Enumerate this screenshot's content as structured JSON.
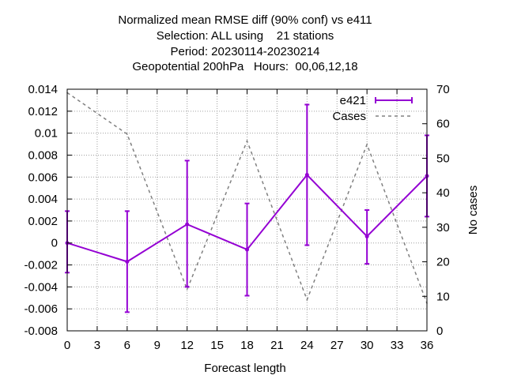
{
  "chart_data": {
    "type": "line",
    "title_lines": [
      "Normalized mean RMSE diff (90% conf) vs e411",
      "Selection: ALL using    21 stations",
      "Period: 20230114-20230214",
      "Geopotential 200hPa   Hours:  00,06,12,18"
    ],
    "xlabel": "Forecast length",
    "ylabel": "",
    "y2label": "No cases",
    "xlim": [
      0,
      36
    ],
    "ylim": [
      -0.008,
      0.014
    ],
    "y2lim": [
      0,
      70
    ],
    "x_ticks": [
      "0",
      "3",
      "6",
      "9",
      "12",
      "15",
      "18",
      "21",
      "24",
      "27",
      "30",
      "33",
      "36"
    ],
    "y_ticks": [
      "0.014",
      "0.012",
      "0.01",
      "0.008",
      "0.006",
      "0.004",
      "0.002",
      "0",
      "-0.002",
      "-0.004",
      "-0.006",
      "-0.008"
    ],
    "y2_ticks": [
      "70",
      "60",
      "50",
      "40",
      "30",
      "20",
      "10",
      "0"
    ],
    "grid": true,
    "legend_position": "top-right",
    "series": [
      {
        "name": "e421",
        "color": "#9400d3",
        "style": "line-with-errorbars",
        "x": [
          0,
          6,
          12,
          18,
          24,
          30,
          36
        ],
        "y": [
          0.0,
          -0.0017,
          0.0017,
          -0.0006,
          0.0062,
          0.0006,
          0.0061
        ],
        "y_low": [
          -0.0027,
          -0.0063,
          -0.004,
          -0.0048,
          -0.0002,
          -0.0019,
          0.0024
        ],
        "y_high": [
          0.0029,
          0.0029,
          0.0075,
          0.0036,
          0.0126,
          0.003,
          0.0098
        ]
      },
      {
        "name": "Cases",
        "color": "#808080",
        "style": "dashed",
        "axis": "y2",
        "x": [
          0,
          6,
          12,
          18,
          24,
          30,
          36
        ],
        "y": [
          69,
          57,
          12,
          55,
          9,
          54,
          8
        ]
      }
    ]
  }
}
